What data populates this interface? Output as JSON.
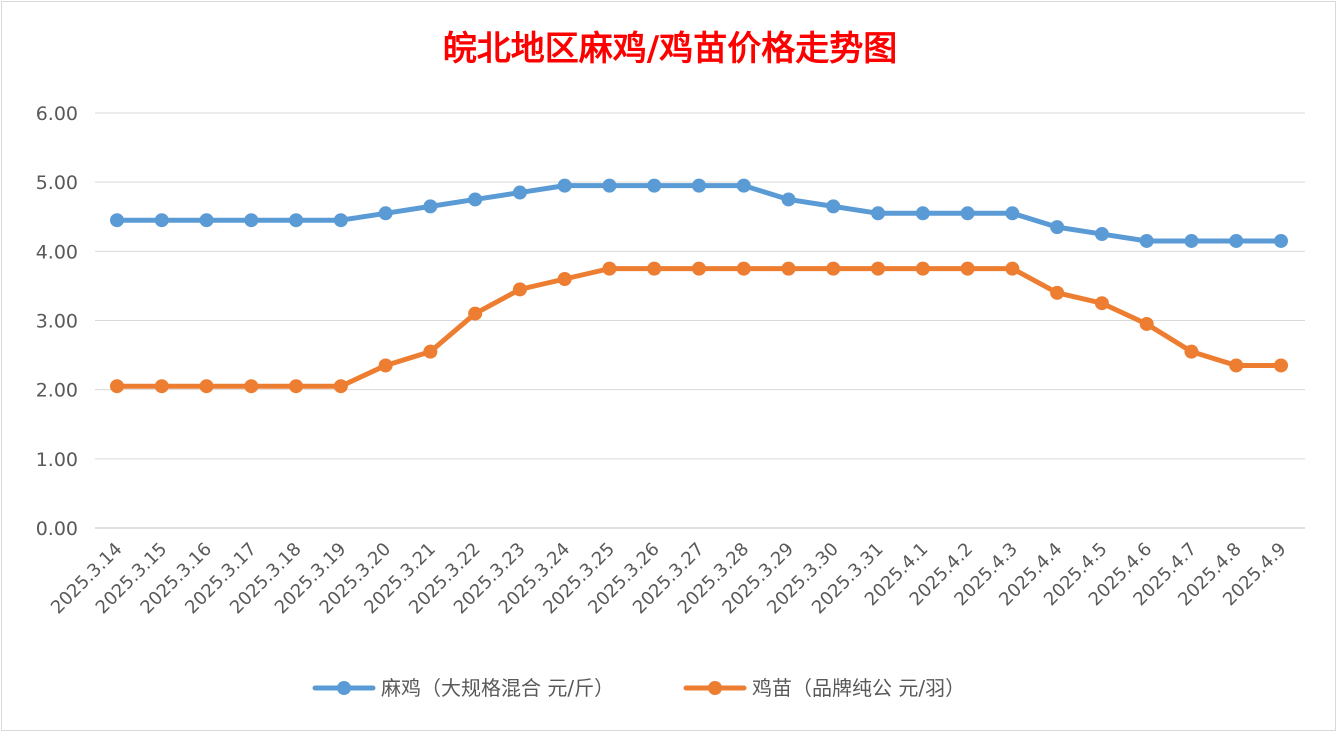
{
  "chart_data": {
    "type": "line",
    "title": "皖北地区麻鸡/鸡苗价格走势图",
    "categories": [
      "2025.3.14",
      "2025.3.15",
      "2025.3.16",
      "2025.3.17",
      "2025.3.18",
      "2025.3.19",
      "2025.3.20",
      "2025.3.21",
      "2025.3.22",
      "2025.3.23",
      "2025.3.24",
      "2025.3.25",
      "2025.3.26",
      "2025.3.27",
      "2025.3.28",
      "2025.3.29",
      "2025.3.30",
      "2025.3.31",
      "2025.4.1",
      "2025.4.2",
      "2025.4.3",
      "2025.4.4",
      "2025.4.5",
      "2025.4.6",
      "2025.4.7",
      "2025.4.8",
      "2025.4.9"
    ],
    "series": [
      {
        "name": "麻鸡（大规格混合 元/斤）",
        "color": "#5b9bd5",
        "values": [
          4.45,
          4.45,
          4.45,
          4.45,
          4.45,
          4.45,
          4.55,
          4.65,
          4.75,
          4.85,
          4.95,
          4.95,
          4.95,
          4.95,
          4.95,
          4.75,
          4.65,
          4.55,
          4.55,
          4.55,
          4.55,
          4.35,
          4.25,
          4.15,
          4.15,
          4.15,
          4.15
        ]
      },
      {
        "name": "鸡苗（品牌纯公 元/羽）",
        "color": "#ed7d31",
        "values": [
          2.05,
          2.05,
          2.05,
          2.05,
          2.05,
          2.05,
          2.35,
          2.55,
          3.1,
          3.45,
          3.6,
          3.75,
          3.75,
          3.75,
          3.75,
          3.75,
          3.75,
          3.75,
          3.75,
          3.75,
          3.75,
          3.4,
          3.25,
          2.95,
          2.55,
          2.35,
          2.35
        ]
      }
    ],
    "yticks": [
      "0.00",
      "1.00",
      "2.00",
      "3.00",
      "4.00",
      "5.00",
      "6.00"
    ],
    "ylim": [
      0,
      6
    ],
    "grid": true,
    "legend_position": "bottom",
    "title_color": "#ff0000"
  }
}
